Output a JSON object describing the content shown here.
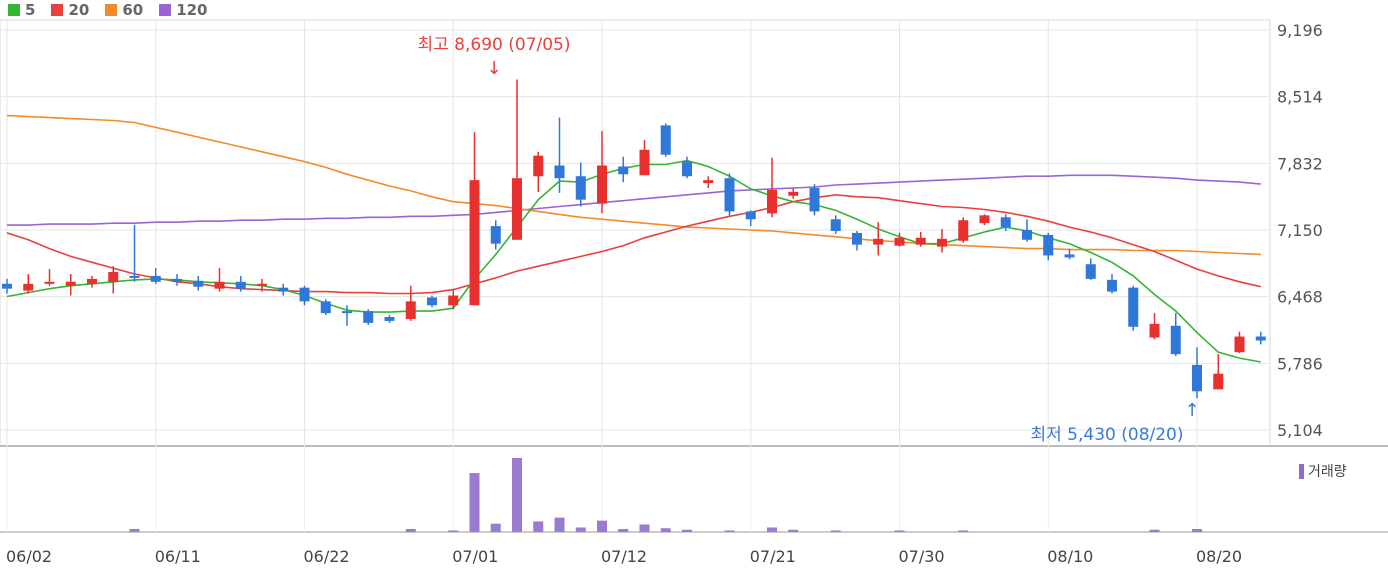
{
  "chart_data": {
    "type": "candlestick",
    "legend": [
      {
        "label": "5",
        "color": "#35b534"
      },
      {
        "label": "20",
        "color": "#e8403f"
      },
      {
        "label": "60",
        "color": "#f28c2a"
      },
      {
        "label": "120",
        "color": "#9a64d6"
      }
    ],
    "y_ticks": [
      "9,196",
      "8,514",
      "7,832",
      "7,150",
      "6,468",
      "5,786",
      "5,104"
    ],
    "ylim": [
      5104,
      9196
    ],
    "x_ticks": [
      {
        "label": "06/02",
        "index": 0
      },
      {
        "label": "06/11",
        "index": 7
      },
      {
        "label": "06/22",
        "index": 14
      },
      {
        "label": "07/01",
        "index": 21
      },
      {
        "label": "07/12",
        "index": 28
      },
      {
        "label": "07/21",
        "index": 35
      },
      {
        "label": "07/30",
        "index": 42
      },
      {
        "label": "08/10",
        "index": 49
      },
      {
        "label": "08/20",
        "index": 56
      }
    ],
    "annotations": {
      "high": "최고 8,690 (07/05)",
      "low": "최저 5,430 (08/20)"
    },
    "volume_label": "거래량",
    "candles": [
      [
        6600,
        6550,
        6650,
        6500
      ],
      [
        6530,
        6600,
        6700,
        6500
      ],
      [
        6600,
        6620,
        6750,
        6580
      ],
      [
        6580,
        6620,
        6700,
        6480
      ],
      [
        6600,
        6650,
        6680,
        6560
      ],
      [
        6620,
        6720,
        6780,
        6500
      ],
      [
        6680,
        6660,
        7200,
        6620
      ],
      [
        6680,
        6620,
        6760,
        6600
      ],
      [
        6650,
        6620,
        6700,
        6580
      ],
      [
        6630,
        6570,
        6680,
        6530
      ],
      [
        6550,
        6620,
        6760,
        6520
      ],
      [
        6620,
        6550,
        6680,
        6520
      ],
      [
        6580,
        6600,
        6650,
        6520
      ],
      [
        6560,
        6520,
        6600,
        6480
      ],
      [
        6560,
        6420,
        6580,
        6380
      ],
      [
        6420,
        6300,
        6440,
        6280
      ],
      [
        6320,
        6300,
        6380,
        6170
      ],
      [
        6320,
        6200,
        6340,
        6180
      ],
      [
        6260,
        6220,
        6280,
        6200
      ],
      [
        6240,
        6420,
        6580,
        6220
      ],
      [
        6460,
        6380,
        6480,
        6360
      ],
      [
        6380,
        6480,
        6540,
        6340
      ],
      [
        6380,
        7660,
        8150,
        6380
      ],
      [
        7190,
        7010,
        7250,
        6950
      ],
      [
        7050,
        7680,
        8690,
        7050
      ],
      [
        7700,
        7910,
        7950,
        7540
      ],
      [
        7810,
        7680,
        8300,
        7530
      ],
      [
        7700,
        7460,
        7840,
        7390
      ],
      [
        7420,
        7810,
        8160,
        7320
      ],
      [
        7800,
        7720,
        7900,
        7640
      ],
      [
        7710,
        7970,
        8070,
        7710
      ],
      [
        8220,
        7920,
        8240,
        7900
      ],
      [
        7850,
        7700,
        7900,
        7680
      ],
      [
        7630,
        7660,
        7700,
        7580
      ],
      [
        7680,
        7340,
        7730,
        7300
      ],
      [
        7340,
        7260,
        7350,
        7190
      ],
      [
        7320,
        7560,
        7890,
        7280
      ],
      [
        7500,
        7540,
        7580,
        7470
      ],
      [
        7580,
        7340,
        7620,
        7300
      ],
      [
        7260,
        7140,
        7300,
        7110
      ],
      [
        7120,
        7000,
        7140,
        6940
      ],
      [
        7000,
        7060,
        7230,
        6890
      ],
      [
        6990,
        7070,
        7120,
        6980
      ],
      [
        7000,
        7070,
        7130,
        6980
      ],
      [
        6980,
        7060,
        7160,
        6920
      ],
      [
        7040,
        7250,
        7280,
        7020
      ],
      [
        7220,
        7300,
        7310,
        7200
      ],
      [
        7280,
        7180,
        7310,
        7140
      ],
      [
        7150,
        7050,
        7260,
        7030
      ],
      [
        7100,
        6890,
        7120,
        6840
      ],
      [
        6900,
        6870,
        6960,
        6850
      ],
      [
        6800,
        6650,
        6860,
        6640
      ],
      [
        6640,
        6520,
        6700,
        6500
      ],
      [
        6560,
        6160,
        6580,
        6120
      ],
      [
        6050,
        6190,
        6300,
        6030
      ],
      [
        6170,
        5880,
        6300,
        5860
      ],
      [
        5770,
        5500,
        5950,
        5430
      ],
      [
        5520,
        5680,
        5880,
        5520
      ],
      [
        5900,
        6060,
        6110,
        5890
      ],
      [
        6060,
        6020,
        6110,
        5980
      ]
    ],
    "ma5": [
      6470,
      6510,
      6550,
      6580,
      6600,
      6620,
      6640,
      6650,
      6640,
      6620,
      6610,
      6600,
      6580,
      6540,
      6480,
      6400,
      6330,
      6310,
      6310,
      6320,
      6320,
      6350,
      6650,
      6900,
      7180,
      7460,
      7650,
      7640,
      7720,
      7780,
      7820,
      7820,
      7860,
      7800,
      7700,
      7570,
      7500,
      7440,
      7410,
      7350,
      7260,
      7160,
      7080,
      7010,
      7010,
      7070,
      7130,
      7180,
      7140,
      7070,
      7010,
      6920,
      6820,
      6680,
      6490,
      6320,
      6100,
      5900,
      5840,
      5800
    ],
    "ma20": [
      7120,
      7050,
      6960,
      6880,
      6820,
      6760,
      6700,
      6660,
      6620,
      6600,
      6570,
      6550,
      6540,
      6530,
      6520,
      6520,
      6510,
      6510,
      6500,
      6500,
      6510,
      6540,
      6600,
      6660,
      6730,
      6780,
      6830,
      6880,
      6930,
      6990,
      7070,
      7130,
      7190,
      7240,
      7290,
      7330,
      7380,
      7440,
      7480,
      7510,
      7490,
      7480,
      7450,
      7420,
      7390,
      7380,
      7360,
      7330,
      7290,
      7240,
      7180,
      7130,
      7070,
      7000,
      6930,
      6840,
      6750,
      6680,
      6620,
      6570
    ],
    "ma60": [
      8320,
      8310,
      8300,
      8290,
      8280,
      8270,
      8250,
      8200,
      8150,
      8100,
      8050,
      8000,
      7950,
      7900,
      7850,
      7790,
      7720,
      7660,
      7600,
      7550,
      7490,
      7440,
      7420,
      7400,
      7370,
      7340,
      7310,
      7280,
      7260,
      7240,
      7220,
      7200,
      7180,
      7170,
      7160,
      7150,
      7140,
      7120,
      7100,
      7080,
      7060,
      7040,
      7030,
      7010,
      7000,
      6990,
      6980,
      6970,
      6960,
      6960,
      6950,
      6950,
      6950,
      6940,
      6940,
      6940,
      6930,
      6920,
      6910,
      6900
    ],
    "ma120": [
      7200,
      7200,
      7210,
      7210,
      7210,
      7220,
      7220,
      7230,
      7230,
      7240,
      7240,
      7250,
      7250,
      7260,
      7260,
      7270,
      7270,
      7280,
      7280,
      7290,
      7290,
      7300,
      7310,
      7330,
      7350,
      7370,
      7390,
      7410,
      7430,
      7450,
      7470,
      7490,
      7510,
      7530,
      7550,
      7560,
      7570,
      7580,
      7590,
      7610,
      7620,
      7630,
      7640,
      7650,
      7660,
      7670,
      7680,
      7690,
      7700,
      7700,
      7710,
      7710,
      7710,
      7700,
      7690,
      7680,
      7660,
      7650,
      7640,
      7620
    ],
    "volume": [
      0,
      0,
      0,
      0,
      0,
      0,
      4,
      0,
      0,
      0,
      0,
      0,
      0,
      0,
      0,
      0,
      0,
      0,
      0,
      4,
      0,
      2,
      78,
      11,
      98,
      14,
      19,
      6,
      15,
      4,
      10,
      5,
      3,
      0,
      2,
      0,
      6,
      3,
      0,
      2,
      0,
      0,
      2,
      0,
      0,
      2,
      0,
      0,
      0,
      0,
      0,
      0,
      0,
      0,
      3,
      0,
      4,
      0,
      0,
      0
    ]
  }
}
